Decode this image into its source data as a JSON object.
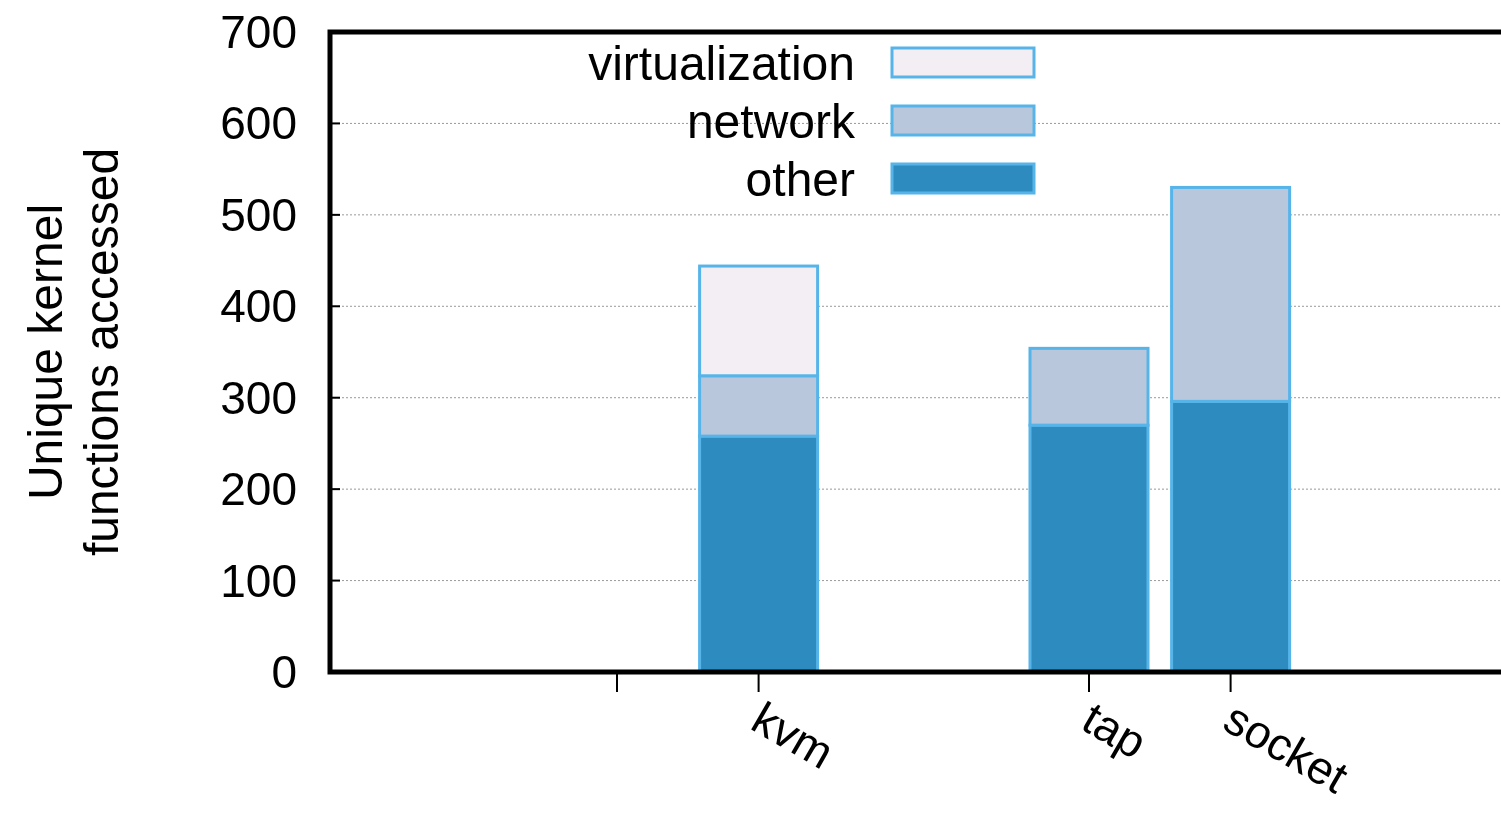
{
  "chart_data": {
    "type": "bar",
    "stacked": true,
    "ylabel": "Unique kernel\nfunctions accessed",
    "categories": [
      null,
      "kvm",
      "tap",
      "socket"
    ],
    "series": [
      {
        "name": "other",
        "color": "#2e8bc0",
        "values": [
          null,
          258,
          270,
          296
        ]
      },
      {
        "name": "network",
        "color": "#b9c7dc",
        "values": [
          null,
          66,
          84,
          234
        ]
      },
      {
        "name": "virtualization",
        "color": "#f3eef4",
        "values": [
          null,
          120,
          null,
          null
        ]
      }
    ],
    "ylim": [
      0,
      700
    ],
    "yticks": [
      0,
      100,
      200,
      300,
      400,
      500,
      600,
      700
    ],
    "grid": "y",
    "legend": "top"
  }
}
